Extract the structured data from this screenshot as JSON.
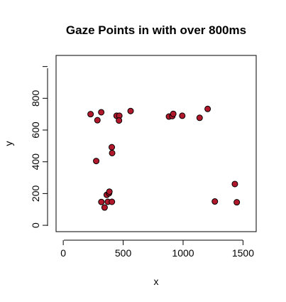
{
  "chart_data": {
    "type": "scatter",
    "title": "Gaze Points in with over 800ms",
    "xlabel": "x",
    "ylabel": "y",
    "xlim": [
      -60,
      1610
    ],
    "ylim": [
      -40,
      1070
    ],
    "x_ticks": [
      0,
      500,
      1000,
      1500
    ],
    "y_ticks": [
      0,
      200,
      400,
      600,
      800
    ],
    "y_axis_extent": [
      0,
      1000
    ],
    "grid": false,
    "legend": "none",
    "point_fill": "#B2182B",
    "point_stroke": "#000000",
    "points": [
      {
        "x": 228,
        "y": 700
      },
      {
        "x": 285,
        "y": 662
      },
      {
        "x": 317,
        "y": 712
      },
      {
        "x": 445,
        "y": 690
      },
      {
        "x": 468,
        "y": 690
      },
      {
        "x": 465,
        "y": 660
      },
      {
        "x": 562,
        "y": 720
      },
      {
        "x": 882,
        "y": 685
      },
      {
        "x": 910,
        "y": 688
      },
      {
        "x": 918,
        "y": 702
      },
      {
        "x": 993,
        "y": 690
      },
      {
        "x": 1138,
        "y": 677
      },
      {
        "x": 1205,
        "y": 733
      },
      {
        "x": 405,
        "y": 492
      },
      {
        "x": 408,
        "y": 455
      },
      {
        "x": 275,
        "y": 405
      },
      {
        "x": 363,
        "y": 192
      },
      {
        "x": 382,
        "y": 202
      },
      {
        "x": 385,
        "y": 212
      },
      {
        "x": 318,
        "y": 147
      },
      {
        "x": 372,
        "y": 148
      },
      {
        "x": 406,
        "y": 148
      },
      {
        "x": 345,
        "y": 112
      },
      {
        "x": 1432,
        "y": 260
      },
      {
        "x": 1265,
        "y": 150
      },
      {
        "x": 1448,
        "y": 145
      }
    ]
  }
}
